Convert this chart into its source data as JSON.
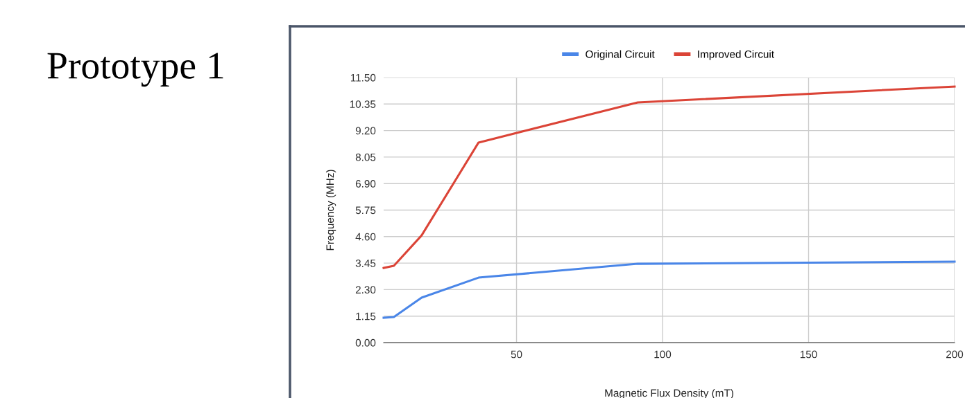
{
  "chart_data": {
    "type": "line",
    "title": "Prototype 1",
    "xlabel": "Magnetic Flux Density (mT)",
    "ylabel": "Frequency (MHz)",
    "x": [
      4.5,
      8,
      17.5,
      37,
      91.5,
      200
    ],
    "series": [
      {
        "name": "Original Circuit",
        "color": "#4a86e8",
        "values": [
          1.08,
          1.11,
          1.95,
          2.82,
          3.42,
          3.51
        ]
      },
      {
        "name": "Improved Circuit",
        "color": "#db4437",
        "values": [
          3.24,
          3.33,
          4.65,
          8.68,
          10.42,
          11.11
        ]
      }
    ],
    "xlim": [
      4.5,
      200
    ],
    "xticks": [
      50,
      100,
      150,
      200
    ],
    "ylim": [
      0,
      11.5
    ],
    "yticks": [
      {
        "value": 0,
        "label": "0.00"
      },
      {
        "value": 1.15,
        "label": "1.15"
      },
      {
        "value": 2.3,
        "label": "2.30"
      },
      {
        "value": 3.45,
        "label": "3.45"
      },
      {
        "value": 4.6,
        "label": "4.60"
      },
      {
        "value": 5.75,
        "label": "5.75"
      },
      {
        "value": 6.9,
        "label": "6.90"
      },
      {
        "value": 8.05,
        "label": "8.05"
      },
      {
        "value": 9.2,
        "label": "9.20"
      },
      {
        "value": 10.35,
        "label": "10.35"
      },
      {
        "value": 11.5,
        "label": "11.50"
      }
    ],
    "grid": true,
    "legend": "top",
    "marker": "none",
    "line_style": "solid"
  }
}
